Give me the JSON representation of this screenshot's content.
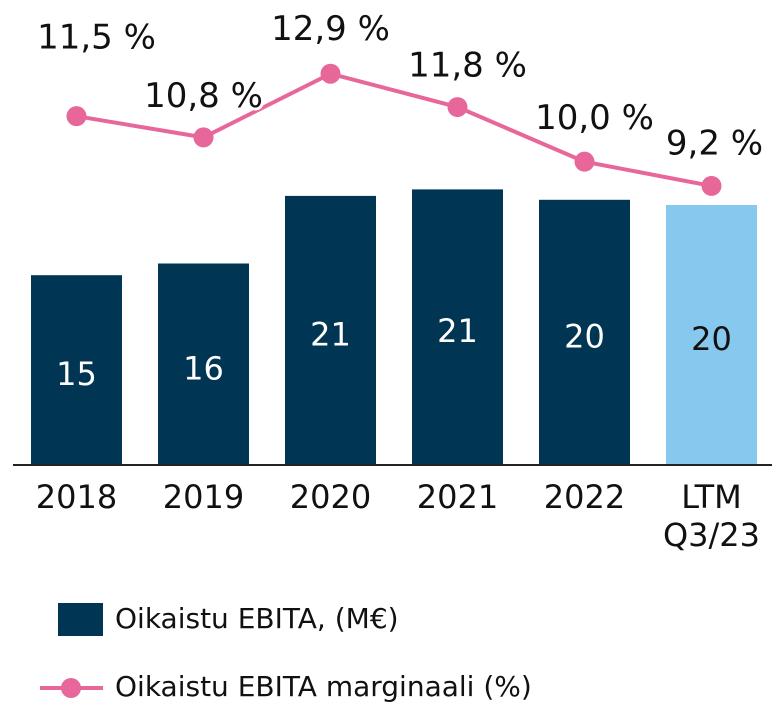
{
  "chart_data": {
    "type": "bar",
    "categories": [
      "2018",
      "2019",
      "2020",
      "2021",
      "2022",
      "LTM Q3/23"
    ],
    "ylim": [
      0,
      35
    ],
    "y2lim": [
      0,
      15
    ],
    "series": [
      {
        "name": "Oikaistu EBITA, (M€)",
        "type": "bar",
        "color": "#003654",
        "colors": [
          "#003654",
          "#003654",
          "#003654",
          "#003654",
          "#003654",
          "#87c8ee"
        ],
        "values": [
          14.6,
          15.5,
          20.7,
          21.2,
          20.4,
          20.0
        ],
        "value_labels": [
          "15",
          "16",
          "21",
          "21",
          "20",
          "20"
        ]
      },
      {
        "name": "Oikaistu EBITA marginaali (%)",
        "type": "line",
        "axis": "y2",
        "color": "#e8679a",
        "values": [
          11.5,
          10.8,
          12.9,
          11.8,
          10.0,
          9.2
        ],
        "value_labels": [
          "11,5 %",
          "10,8 %",
          "12,9 %",
          "11,8 %",
          "10,0 %",
          "9,2 %"
        ]
      }
    ]
  }
}
